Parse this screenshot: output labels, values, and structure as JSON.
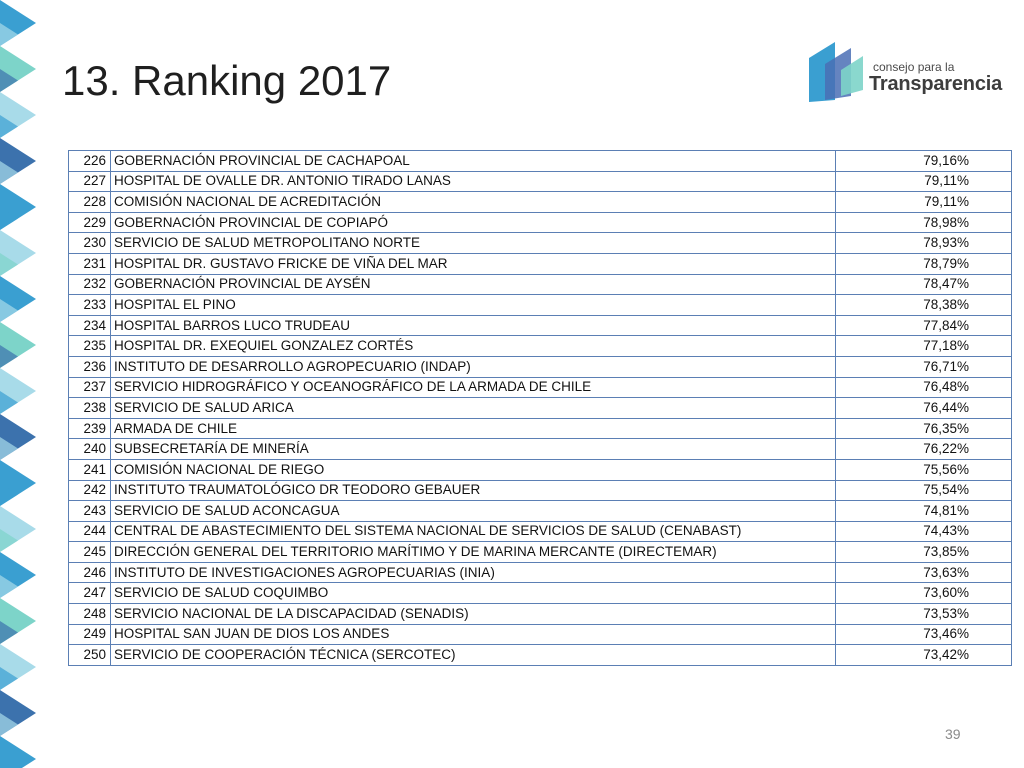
{
  "slide": {
    "title": "13. Ranking 2017",
    "page_number": "39"
  },
  "logo": {
    "line1": "consejo para la",
    "line2": "Transparencia"
  },
  "colors": {
    "table_border": "#5b7fb4",
    "deco_blue": "#3a9fd1",
    "deco_teal": "#7dd4c9",
    "deco_light": "#a8dbe9",
    "deco_dark": "#3c72ad"
  },
  "ranking": {
    "rows": [
      {
        "rank": "226",
        "name": "GOBERNACIÓN PROVINCIAL DE CACHAPOAL",
        "score": "79,16%"
      },
      {
        "rank": "227",
        "name": "HOSPITAL DE OVALLE DR. ANTONIO TIRADO LANAS",
        "score": "79,11%"
      },
      {
        "rank": "228",
        "name": "COMISIÓN NACIONAL DE ACREDITACIÓN",
        "score": "79,11%"
      },
      {
        "rank": "229",
        "name": "GOBERNACIÓN PROVINCIAL DE COPIAPÓ",
        "score": "78,98%"
      },
      {
        "rank": "230",
        "name": "SERVICIO DE SALUD METROPOLITANO NORTE",
        "score": "78,93%"
      },
      {
        "rank": "231",
        "name": "HOSPITAL DR. GUSTAVO FRICKE DE VIÑA DEL MAR",
        "score": "78,79%"
      },
      {
        "rank": "232",
        "name": "GOBERNACIÓN PROVINCIAL DE AYSÉN",
        "score": "78,47%"
      },
      {
        "rank": "233",
        "name": "HOSPITAL EL PINO",
        "score": "78,38%"
      },
      {
        "rank": "234",
        "name": "HOSPITAL BARROS LUCO TRUDEAU",
        "score": "77,84%"
      },
      {
        "rank": "235",
        "name": "HOSPITAL DR. EXEQUIEL GONZALEZ CORTÉS",
        "score": "77,18%"
      },
      {
        "rank": "236",
        "name": "INSTITUTO DE DESARROLLO AGROPECUARIO (INDAP)",
        "score": "76,71%"
      },
      {
        "rank": "237",
        "name": "SERVICIO HIDROGRÁFICO Y OCEANOGRÁFICO DE LA ARMADA DE CHILE",
        "score": "76,48%"
      },
      {
        "rank": "238",
        "name": "SERVICIO DE SALUD ARICA",
        "score": "76,44%"
      },
      {
        "rank": "239",
        "name": "ARMADA DE CHILE",
        "score": "76,35%"
      },
      {
        "rank": "240",
        "name": "SUBSECRETARÍA DE MINERÍA",
        "score": "76,22%"
      },
      {
        "rank": "241",
        "name": "COMISIÓN NACIONAL DE RIEGO",
        "score": "75,56%"
      },
      {
        "rank": "242",
        "name": "INSTITUTO TRAUMATOLÓGICO DR TEODORO GEBAUER",
        "score": "75,54%"
      },
      {
        "rank": "243",
        "name": "SERVICIO DE SALUD ACONCAGUA",
        "score": "74,81%"
      },
      {
        "rank": "244",
        "name": "CENTRAL DE ABASTECIMIENTO DEL SISTEMA NACIONAL DE SERVICIOS DE SALUD (CENABAST)",
        "score": "74,43%"
      },
      {
        "rank": "245",
        "name": "DIRECCIÓN GENERAL DEL TERRITORIO MARÍTIMO Y DE MARINA MERCANTE (DIRECTEMAR)",
        "score": "73,85%"
      },
      {
        "rank": "246",
        "name": "INSTITUTO DE INVESTIGACIONES AGROPECUARIAS (INIA)",
        "score": "73,63%"
      },
      {
        "rank": "247",
        "name": "SERVICIO DE SALUD COQUIMBO",
        "score": "73,60%"
      },
      {
        "rank": "248",
        "name": "SERVICIO NACIONAL DE LA DISCAPACIDAD (SENADIS)",
        "score": "73,53%"
      },
      {
        "rank": "249",
        "name": "HOSPITAL SAN JUAN DE DIOS LOS ANDES",
        "score": "73,46%"
      },
      {
        "rank": "250",
        "name": "SERVICIO DE COOPERACIÓN TÉCNICA (SERCOTEC)",
        "score": "73,42%"
      }
    ]
  }
}
